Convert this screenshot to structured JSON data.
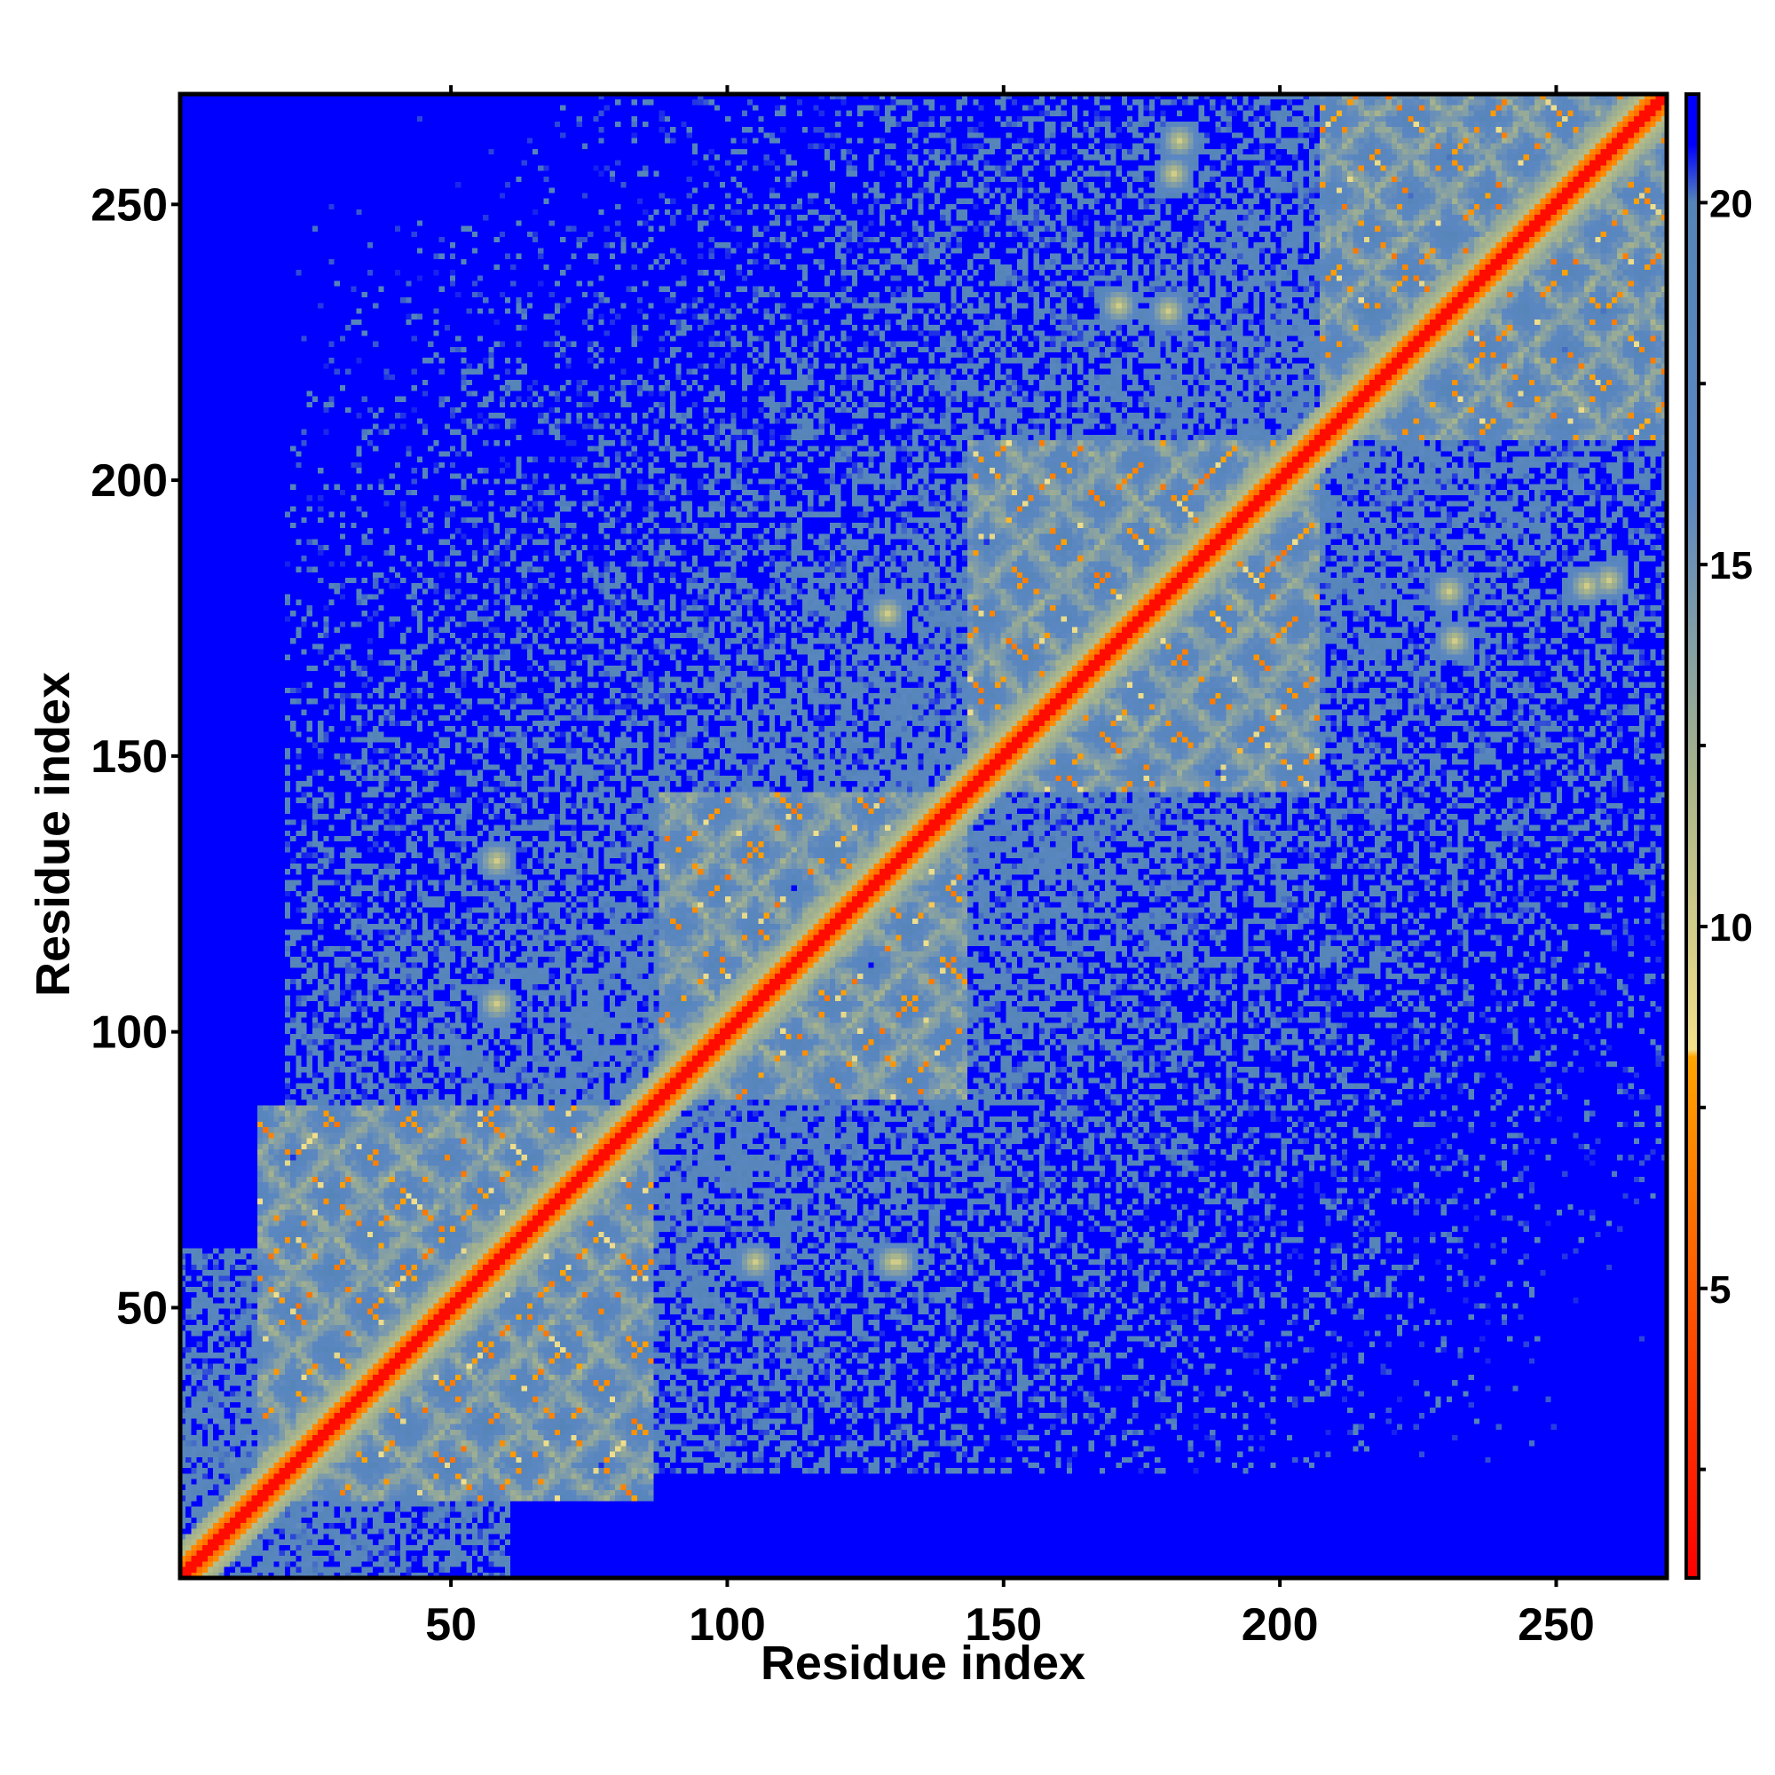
{
  "chart_data": {
    "type": "heatmap",
    "title": "",
    "xlabel": "Residue index",
    "ylabel": "Residue index",
    "n_residues": 270,
    "xlim": [
      1,
      270
    ],
    "ylim": [
      1,
      270
    ],
    "x_ticks": [
      50,
      100,
      150,
      200,
      250
    ],
    "y_ticks": [
      50,
      100,
      150,
      200,
      250
    ],
    "x_tick_labels": [
      "50",
      "100",
      "150",
      "200",
      "250"
    ],
    "y_tick_labels": [
      "50",
      "100",
      "150",
      "200",
      "250"
    ],
    "colorbar": {
      "range": [
        1,
        21.5
      ],
      "ticks": [
        5,
        10,
        15,
        20
      ],
      "tick_labels": [
        "5",
        "10",
        "15",
        "20"
      ],
      "stops": [
        {
          "value": 1,
          "color": "#ff0000"
        },
        {
          "value": 5,
          "color": "#ff5a00"
        },
        {
          "value": 8.2,
          "color": "#ffa500"
        },
        {
          "value": 8.3,
          "color": "#f3e08a"
        },
        {
          "value": 12,
          "color": "#a9b58a"
        },
        {
          "value": 16,
          "color": "#5b87c2"
        },
        {
          "value": 20,
          "color": "#5585b8"
        },
        {
          "value": 20.8,
          "color": "#0000ff"
        },
        {
          "value": 21.5,
          "color": "#0000ff"
        }
      ]
    },
    "domains": [
      {
        "start": 15,
        "end": 86
      },
      {
        "start": 88,
        "end": 143
      },
      {
        "start": 143,
        "end": 207
      },
      {
        "start": 208,
        "end": 270
      }
    ],
    "contacts": [
      [
        58,
        131
      ],
      [
        58,
        105
      ],
      [
        58,
        58
      ],
      [
        131,
        58
      ],
      [
        105,
        58
      ],
      [
        130,
        58
      ],
      [
        180,
        231
      ],
      [
        231,
        180
      ],
      [
        181,
        256
      ],
      [
        256,
        181
      ],
      [
        129,
        176
      ],
      [
        171,
        232
      ],
      [
        232,
        171
      ],
      [
        260,
        182
      ],
      [
        182,
        262
      ]
    ],
    "background_value": 21.5,
    "mid_value": 18,
    "grid": false,
    "legend": "colorbar-right"
  }
}
